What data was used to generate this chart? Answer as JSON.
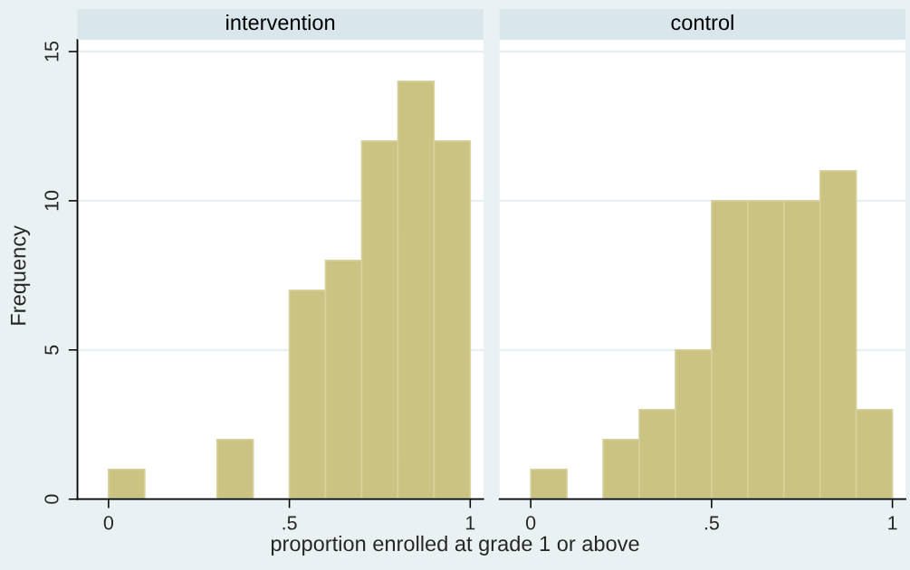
{
  "chart_data": [
    {
      "type": "histogram",
      "title": "intervention",
      "ylabel": "Frequency",
      "xlabel": "proportion enrolled at grade 1 or above",
      "bins": [
        0,
        0.1,
        0.2,
        0.3,
        0.4,
        0.5,
        0.6,
        0.7,
        0.8,
        0.9,
        1
      ],
      "values": [
        1,
        0,
        0,
        2,
        0,
        7,
        8,
        12,
        14,
        12
      ],
      "color": "#cbc382",
      "xlim": [
        -0.086,
        1.036
      ],
      "xticks": [
        0,
        {
          "value": 0.5,
          "label": ".5"
        },
        1
      ],
      "ylim": [
        0,
        15.4
      ],
      "yticks": [
        0,
        5,
        10,
        15
      ],
      "grid": "y"
    },
    {
      "type": "histogram",
      "title": "control",
      "bins": [
        0,
        0.1,
        0.2,
        0.3,
        0.4,
        0.5,
        0.6,
        0.7,
        0.8,
        0.9,
        1
      ],
      "values": [
        1,
        0,
        2,
        3,
        5,
        10,
        10,
        10,
        11,
        3
      ],
      "color": "#cbc382",
      "xlim": [
        -0.086,
        1.036
      ],
      "xticks": [
        0,
        {
          "value": 0.5,
          "label": ".5"
        },
        1
      ],
      "ylim": [
        0,
        15.4
      ],
      "yticks": [
        0,
        5,
        10,
        15
      ],
      "grid": "y",
      "tick_labels": "x"
    }
  ]
}
